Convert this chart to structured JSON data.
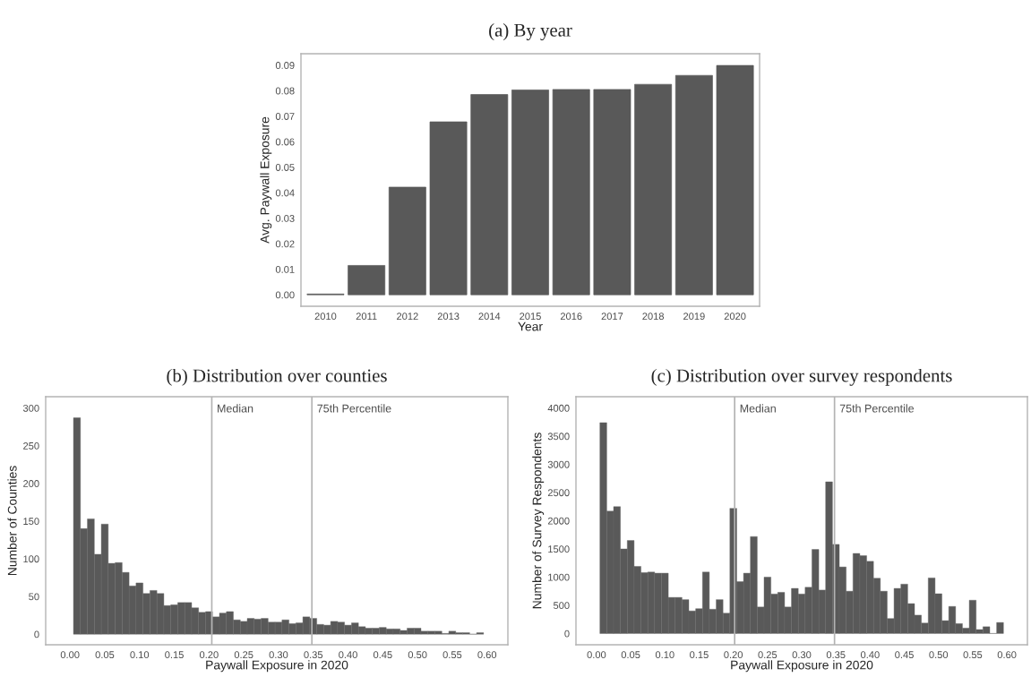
{
  "chart_data": [
    {
      "type": "bar",
      "title": "(a) By year",
      "xlabel": "Year",
      "ylabel": "Avg. Paywall Exposure",
      "categories": [
        "2010",
        "2011",
        "2012",
        "2013",
        "2014",
        "2015",
        "2016",
        "2017",
        "2018",
        "2019",
        "2020"
      ],
      "values": [
        0.0003,
        0.0115,
        0.0422,
        0.0678,
        0.0785,
        0.0803,
        0.0805,
        0.0805,
        0.0825,
        0.086,
        0.0899
      ],
      "color": "#595959",
      "ylim": [
        -0.0045,
        0.0945
      ],
      "yticks": [
        {
          "value": 0,
          "label": "0.00"
        },
        {
          "value": 0.01,
          "label": "0.01"
        },
        {
          "value": 0.02,
          "label": "0.02"
        },
        {
          "value": 0.03,
          "label": "0.03"
        },
        {
          "value": 0.04,
          "label": "0.04"
        },
        {
          "value": 0.05,
          "label": "0.05"
        },
        {
          "value": 0.06,
          "label": "0.06"
        },
        {
          "value": 0.07,
          "label": "0.07"
        },
        {
          "value": 0.08,
          "label": "0.08"
        },
        {
          "value": 0.09,
          "label": "0.09"
        }
      ],
      "grid": false
    },
    {
      "type": "histogram",
      "title": "(b) Distribution over counties",
      "xlabel": "Paywall Exposure in 2020",
      "ylabel": "Number of Counties",
      "bins": [
        0.005,
        0.015,
        0.025,
        0.035,
        0.045,
        0.055,
        0.065,
        0.075,
        0.085,
        0.095,
        0.105,
        0.115,
        0.125,
        0.135,
        0.145,
        0.155,
        0.165,
        0.175,
        0.185,
        0.195,
        0.205,
        0.215,
        0.225,
        0.235,
        0.245,
        0.255,
        0.265,
        0.275,
        0.285,
        0.295,
        0.305,
        0.315,
        0.325,
        0.335,
        0.345,
        0.355,
        0.365,
        0.375,
        0.385,
        0.395,
        0.405,
        0.415,
        0.425,
        0.435,
        0.445,
        0.455,
        0.465,
        0.475,
        0.485,
        0.495,
        0.505,
        0.515,
        0.525,
        0.535,
        0.545,
        0.555,
        0.565,
        0.575,
        0.585,
        0.595
      ],
      "values": [
        287,
        140,
        153,
        106,
        146,
        94,
        95,
        82,
        64,
        68,
        54,
        58,
        54,
        38,
        39,
        42,
        42,
        35,
        29,
        30,
        23,
        28,
        30,
        19,
        17,
        21,
        20,
        21,
        16,
        16,
        19,
        14,
        15,
        23,
        21,
        13,
        12,
        17,
        16,
        12,
        15,
        10,
        8,
        8,
        9,
        7,
        7,
        5,
        8,
        8,
        4,
        4,
        4,
        1,
        4,
        2,
        2,
        0,
        2
      ],
      "color": "#595959",
      "xlim": [
        -0.035,
        0.63
      ],
      "xticks": [
        {
          "value": 0,
          "label": "0.00"
        },
        {
          "value": 0.05,
          "label": "0.05"
        },
        {
          "value": 0.1,
          "label": "0.10"
        },
        {
          "value": 0.15,
          "label": "0.15"
        },
        {
          "value": 0.2,
          "label": "0.20"
        },
        {
          "value": 0.25,
          "label": "0.25"
        },
        {
          "value": 0.3,
          "label": "0.30"
        },
        {
          "value": 0.35,
          "label": "0.35"
        },
        {
          "value": 0.4,
          "label": "0.40"
        },
        {
          "value": 0.45,
          "label": "0.45"
        },
        {
          "value": 0.5,
          "label": "0.50"
        },
        {
          "value": 0.55,
          "label": "0.55"
        },
        {
          "value": 0.6,
          "label": "0.60"
        }
      ],
      "ylim": [
        -14,
        315
      ],
      "yticks": [
        0,
        50,
        100,
        150,
        200,
        250,
        300
      ],
      "grid": false,
      "ref_lines": [
        {
          "axis": "x",
          "value": 0.204,
          "label": "Median",
          "color": "#b3b3b3"
        },
        {
          "axis": "x",
          "value": 0.348,
          "label": "75th Percentile",
          "color": "#b3b3b3"
        }
      ]
    },
    {
      "type": "histogram",
      "title": "(c) Distribution over survey respondents",
      "xlabel": "Paywall Exposure in 2020",
      "ylabel": "Number of Survey Respondents",
      "bins": [
        0.005,
        0.015,
        0.025,
        0.035,
        0.045,
        0.055,
        0.065,
        0.075,
        0.085,
        0.095,
        0.105,
        0.115,
        0.125,
        0.135,
        0.145,
        0.155,
        0.165,
        0.175,
        0.185,
        0.195,
        0.205,
        0.215,
        0.225,
        0.235,
        0.245,
        0.255,
        0.265,
        0.275,
        0.285,
        0.295,
        0.305,
        0.315,
        0.325,
        0.335,
        0.345,
        0.355,
        0.365,
        0.375,
        0.385,
        0.395,
        0.405,
        0.415,
        0.425,
        0.435,
        0.445,
        0.455,
        0.465,
        0.475,
        0.485,
        0.495,
        0.505,
        0.515,
        0.525,
        0.535,
        0.545,
        0.555,
        0.565,
        0.575,
        0.585,
        0.595
      ],
      "values": [
        3740,
        2170,
        2250,
        1500,
        1650,
        1190,
        1080,
        1090,
        1070,
        1070,
        640,
        640,
        600,
        400,
        440,
        1090,
        430,
        600,
        360,
        2220,
        920,
        1070,
        1720,
        470,
        1000,
        700,
        730,
        470,
        800,
        700,
        820,
        1490,
        770,
        2690,
        1580,
        1180,
        750,
        1420,
        1380,
        1280,
        980,
        750,
        265,
        800,
        875,
        530,
        325,
        185,
        985,
        705,
        228,
        480,
        175,
        95,
        590,
        70,
        120,
        0,
        195
      ],
      "color": "#595959",
      "xlim": [
        -0.03,
        0.63
      ],
      "xticks": [
        {
          "value": 0,
          "label": "0.00"
        },
        {
          "value": 0.05,
          "label": "0.05"
        },
        {
          "value": 0.1,
          "label": "0.10"
        },
        {
          "value": 0.15,
          "label": "0.15"
        },
        {
          "value": 0.2,
          "label": "0.20"
        },
        {
          "value": 0.25,
          "label": "0.25"
        },
        {
          "value": 0.3,
          "label": "0.30"
        },
        {
          "value": 0.35,
          "label": "0.35"
        },
        {
          "value": 0.4,
          "label": "0.40"
        },
        {
          "value": 0.45,
          "label": "0.45"
        },
        {
          "value": 0.5,
          "label": "0.50"
        },
        {
          "value": 0.55,
          "label": "0.55"
        },
        {
          "value": 0.6,
          "label": "0.60"
        }
      ],
      "ylim": [
        -200,
        4200
      ],
      "yticks": [
        0,
        500,
        1000,
        1500,
        2000,
        2500,
        3000,
        3500,
        4000
      ],
      "grid": false,
      "ref_lines": [
        {
          "axis": "x",
          "value": 0.202,
          "label": "Median",
          "color": "#b3b3b3"
        },
        {
          "axis": "x",
          "value": 0.348,
          "label": "75th Percentile",
          "color": "#b3b3b3"
        }
      ]
    }
  ]
}
